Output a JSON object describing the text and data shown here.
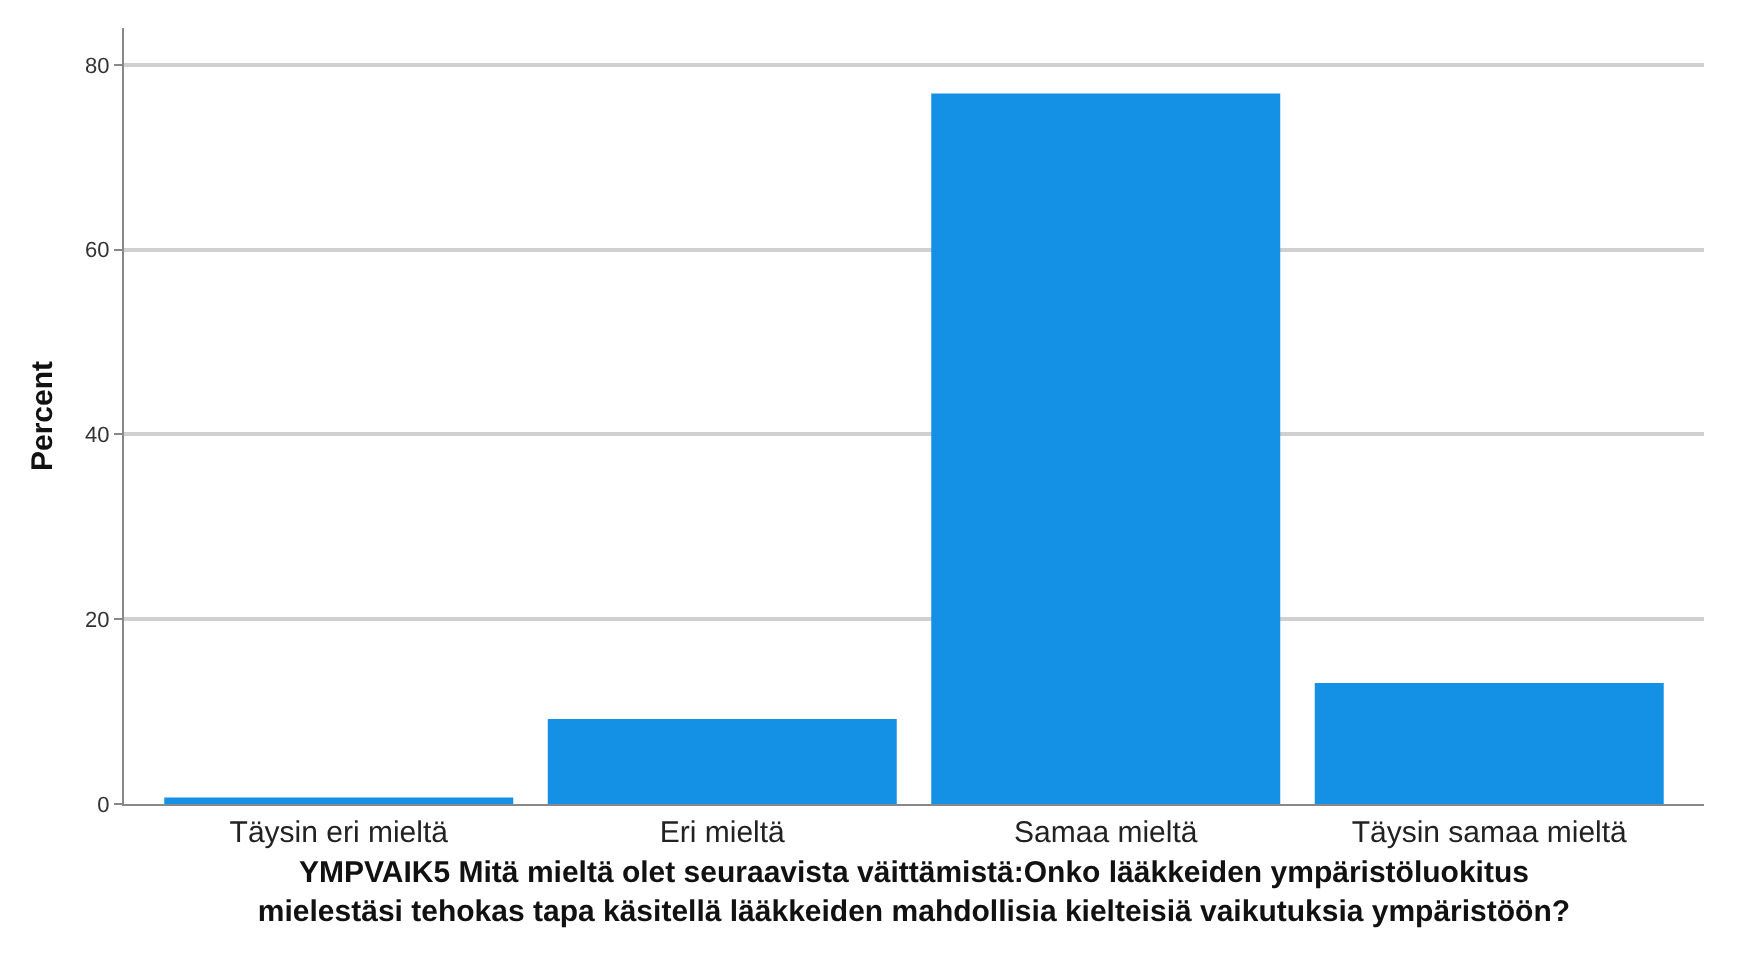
{
  "chart_data": {
    "type": "bar",
    "xlabel": "YMPVAIK5 Mitä mieltä olet seuraavista väittämistä:Onko lääkkeiden ympäristöluokitus\nmielestäsi tehokas tapa käsitellä lääkkeiden mahdollisia kielteisiä vaikutuksia ympäristöön?",
    "ylabel": "Percent",
    "categories": [
      "Täysin eri mieltä",
      "Eri mieltä",
      "Samaa mieltä",
      "Täysin samaa mieltä"
    ],
    "values": [
      0.7,
      9.2,
      76.9,
      13.1
    ],
    "color": "#1490e5",
    "ylim": [
      0,
      84
    ],
    "yticks": [
      0,
      20,
      40,
      60,
      80
    ],
    "grid": "y"
  }
}
